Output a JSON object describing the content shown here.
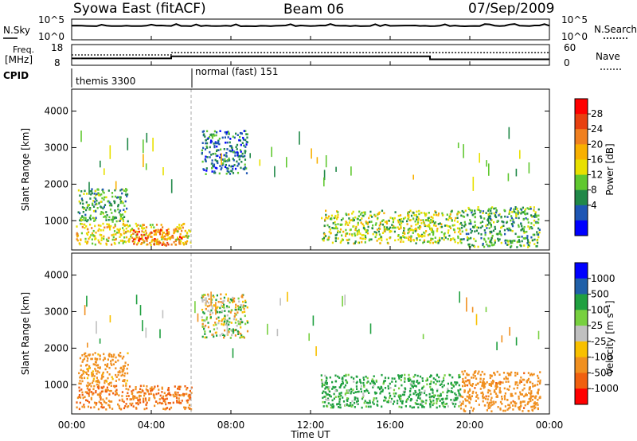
{
  "header": {
    "station": "Syowa East (fitACF)",
    "beam": "Beam 06",
    "date": "07/Sep/2009"
  },
  "nsky_panel": {
    "left_label": "N.Sky",
    "right_label": "N.Search",
    "left_ticks": [
      "10^5",
      "10^0"
    ],
    "right_ticks": [
      "10^5",
      "10^0"
    ]
  },
  "freq_panel": {
    "left_label_line1": "Freq.",
    "left_label_line2": "[MHz]",
    "right_label": "Nave",
    "left_ticks": [
      "18",
      "8"
    ],
    "right_ticks": [
      "60",
      "0"
    ]
  },
  "cpid_panel": {
    "label": "CPID",
    "modes": [
      "themis 3300",
      "normal (fast) 151"
    ]
  },
  "power_panel": {
    "ylabel": "Slant Range [km]",
    "colorbar_label": "Power [dB]",
    "colorbar_ticks": [
      "28",
      "24",
      "20",
      "16",
      "12",
      "8",
      "4"
    ],
    "colorbar_colors": [
      "#ff0000",
      "#e84010",
      "#f08020",
      "#f8b000",
      "#e8e000",
      "#60c830",
      "#208848",
      "#1e56b4",
      "#0000ff"
    ]
  },
  "velocity_panel": {
    "ylabel": "Slant Range [km]",
    "colorbar_label": "Velocity [m s⁻¹]",
    "colorbar_ticks": [
      "1000",
      "500",
      "100",
      "25",
      "-25",
      "-100",
      "-500",
      "-1000"
    ],
    "colorbar_colors": [
      "#0000ff",
      "#2060a8",
      "#20a040",
      "#78d040",
      "#c0c0c0",
      "#f8c000",
      "#f09020",
      "#f06010",
      "#ff0000"
    ]
  },
  "xaxis": {
    "label": "Time UT",
    "ticks": [
      "00:00",
      "04:00",
      "08:00",
      "12:00",
      "16:00",
      "20:00",
      "00:00"
    ]
  },
  "chart_data": {
    "type": "heatmap",
    "title": "Syowa East (fitACF)",
    "xlabel": "Time UT",
    "ylabel": "Slant Range [km]",
    "x_range_hours": [
      0,
      24
    ],
    "y_range_km": [
      200,
      4600
    ],
    "y_ticks": [
      1000,
      2000,
      3000,
      4000
    ],
    "gap_hour": 6,
    "power_regions": [
      {
        "t": [
          0.2,
          6.0
        ],
        "r": [
          350,
          950
        ],
        "dB": 18
      },
      {
        "t": [
          0.3,
          2.8
        ],
        "r": [
          1000,
          1900
        ],
        "dB": 10
      },
      {
        "t": [
          3.0,
          5.5
        ],
        "r": [
          350,
          800
        ],
        "dB": 25
      },
      {
        "t": [
          6.5,
          8.8
        ],
        "r": [
          2300,
          3500
        ],
        "dB": 6
      },
      {
        "t": [
          12.5,
          19.5
        ],
        "r": [
          400,
          1300
        ],
        "dB": 14
      },
      {
        "t": [
          19.5,
          23.5
        ],
        "r": [
          300,
          1400
        ],
        "dB": 10
      }
    ],
    "velocity_regions": [
      {
        "t": [
          0.2,
          6.0
        ],
        "r": [
          350,
          1000
        ],
        "v": -300
      },
      {
        "t": [
          0.3,
          2.8
        ],
        "r": [
          1000,
          1900
        ],
        "v": -150
      },
      {
        "t": [
          6.5,
          8.8
        ],
        "r": [
          2300,
          3500
        ],
        "v": 0
      },
      {
        "t": [
          12.5,
          19.5
        ],
        "r": [
          400,
          1300
        ],
        "v": 120
      },
      {
        "t": [
          19.5,
          23.5
        ],
        "r": [
          300,
          1400
        ],
        "v": -200
      }
    ],
    "freq_mhz": [
      {
        "t": [
          0,
          5
        ],
        "f": 11
      },
      {
        "t": [
          5,
          18
        ],
        "f": 12.2
      },
      {
        "t": [
          18,
          24
        ],
        "f": 10.5
      }
    ],
    "nave": [
      {
        "t": [
          0,
          5
        ],
        "n": 30
      },
      {
        "t": [
          5,
          24
        ],
        "n": 38
      }
    ]
  }
}
